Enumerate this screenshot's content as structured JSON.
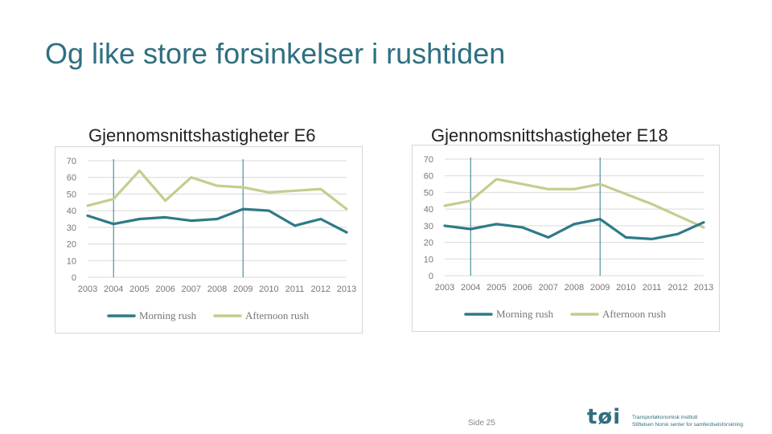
{
  "slide": {
    "title": "Og like store forsinkelser i rushtiden",
    "page": "Side 25"
  },
  "logo": {
    "mark": "tøi",
    "line1": "Transportøkonomisk institutt",
    "line2": "Stiftelsen Norsk senter for samferdselsforskning"
  },
  "colors": {
    "morning": "#2e7a87",
    "afternoon": "#c6cc8f",
    "grid": "#d9d9d9",
    "marker": "#2e7a87"
  },
  "chart_data": [
    {
      "type": "line",
      "title": "Gjennomsnittshastigheter E6",
      "categories": [
        "2003",
        "2004",
        "2005",
        "2006",
        "2007",
        "2008",
        "2009",
        "2010",
        "2011",
        "2012",
        "2013"
      ],
      "ylim": [
        0,
        70
      ],
      "yticks": [
        0,
        10,
        20,
        30,
        40,
        50,
        60,
        70
      ],
      "grid": true,
      "legend_position": "bottom",
      "markers": [
        "2004",
        "2009"
      ],
      "series": [
        {
          "name": "Morning rush",
          "values": [
            37,
            32,
            35,
            36,
            34,
            35,
            41,
            40,
            31,
            35,
            27
          ]
        },
        {
          "name": "Afternoon rush",
          "values": [
            43,
            47,
            64,
            46,
            60,
            55,
            54,
            51,
            52,
            53,
            41
          ]
        }
      ]
    },
    {
      "type": "line",
      "title": "Gjennomsnittshastigheter E18",
      "categories": [
        "2003",
        "2004",
        "2005",
        "2006",
        "2007",
        "2008",
        "2009",
        "2010",
        "2011",
        "2012",
        "2013"
      ],
      "ylim": [
        0,
        70
      ],
      "yticks": [
        0,
        10,
        20,
        30,
        40,
        50,
        60,
        70
      ],
      "grid": true,
      "legend_position": "bottom",
      "markers": [
        "2004",
        "2009"
      ],
      "series": [
        {
          "name": "Morning rush",
          "values": [
            30,
            28,
            31,
            29,
            23,
            31,
            34,
            23,
            22,
            25,
            32
          ]
        },
        {
          "name": "Afternoon rush",
          "values": [
            42,
            45,
            58,
            55,
            52,
            52,
            55,
            49,
            43,
            36,
            29
          ]
        }
      ]
    }
  ]
}
